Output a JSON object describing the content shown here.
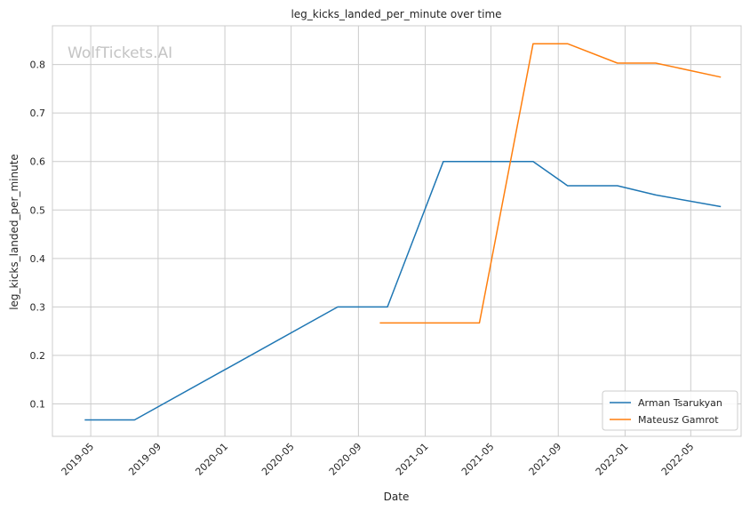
{
  "watermark": "WolfTickets.AI",
  "chart_data": {
    "type": "line",
    "title": "leg_kicks_landed_per_minute over time",
    "xlabel": "Date",
    "ylabel": "leg_kicks_landed_per_minute",
    "x_ticks": [
      "2019-05",
      "2019-09",
      "2020-01",
      "2020-05",
      "2020-09",
      "2021-01",
      "2021-05",
      "2021-09",
      "2022-01",
      "2022-05"
    ],
    "y_ticks": [
      0.1,
      0.2,
      0.3,
      0.4,
      0.5,
      0.6,
      0.7,
      0.8
    ],
    "xlim": [
      "2019-02-20",
      "2022-08-01"
    ],
    "ylim": [
      0.033,
      0.88
    ],
    "grid": true,
    "legend_position": "bottom-right",
    "series": [
      {
        "name": "Arman Tsarukyan",
        "color": "#1f77b4",
        "points": [
          {
            "x": "2019-04-20",
            "y": 0.067
          },
          {
            "x": "2019-07-20",
            "y": 0.067
          },
          {
            "x": "2020-07-25",
            "y": 0.3
          },
          {
            "x": "2020-10-24",
            "y": 0.3
          },
          {
            "x": "2021-02-03",
            "y": 0.6
          },
          {
            "x": "2021-07-17",
            "y": 0.6
          },
          {
            "x": "2021-09-18",
            "y": 0.55
          },
          {
            "x": "2021-12-18",
            "y": 0.55
          },
          {
            "x": "2022-02-26",
            "y": 0.531
          },
          {
            "x": "2022-06-25",
            "y": 0.507
          }
        ]
      },
      {
        "name": "Mateusz Gamrot",
        "color": "#ff7f0e",
        "points": [
          {
            "x": "2020-10-10",
            "y": 0.267
          },
          {
            "x": "2021-04-10",
            "y": 0.267
          },
          {
            "x": "2021-07-17",
            "y": 0.843
          },
          {
            "x": "2021-09-18",
            "y": 0.843
          },
          {
            "x": "2021-12-18",
            "y": 0.803
          },
          {
            "x": "2022-02-26",
            "y": 0.803
          },
          {
            "x": "2022-06-25",
            "y": 0.774
          }
        ]
      }
    ]
  }
}
